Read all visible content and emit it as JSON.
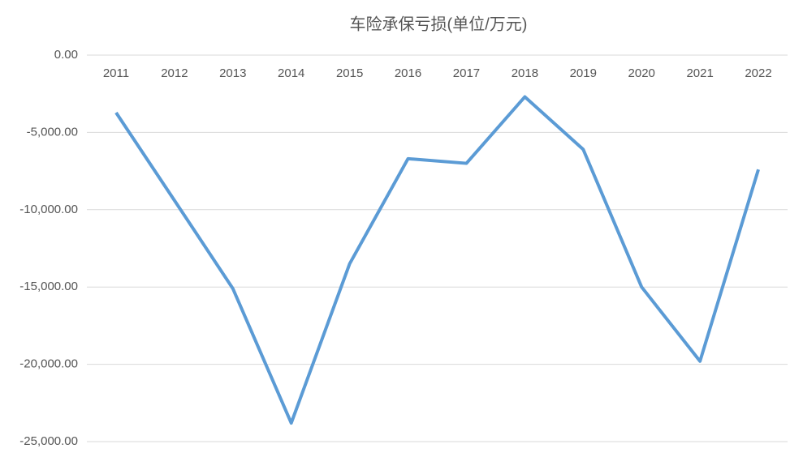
{
  "chart_data": {
    "type": "line",
    "title": "车险承保亏损(单位/万元)",
    "categories": [
      "2011",
      "2012",
      "2013",
      "2014",
      "2015",
      "2016",
      "2017",
      "2018",
      "2019",
      "2020",
      "2021",
      "2022"
    ],
    "series": [
      {
        "name": "车险承保亏损",
        "color": "#5b9bd5",
        "values": [
          -3720,
          -9400,
          -15100,
          -23800,
          -13500,
          -6700,
          -7000,
          -2700,
          -6100,
          -15000,
          -19800,
          -7400
        ]
      }
    ],
    "ylim": [
      -25000,
      0
    ],
    "yticks": [
      {
        "value": 0,
        "label": "0.00"
      },
      {
        "value": -5000,
        "label": "-5,000.00"
      },
      {
        "value": -10000,
        "label": "-10,000.00"
      },
      {
        "value": -15000,
        "label": "-15,000.00"
      },
      {
        "value": -20000,
        "label": "-20,000.00"
      },
      {
        "value": -25000,
        "label": "-25,000.00"
      }
    ],
    "grid": true
  }
}
